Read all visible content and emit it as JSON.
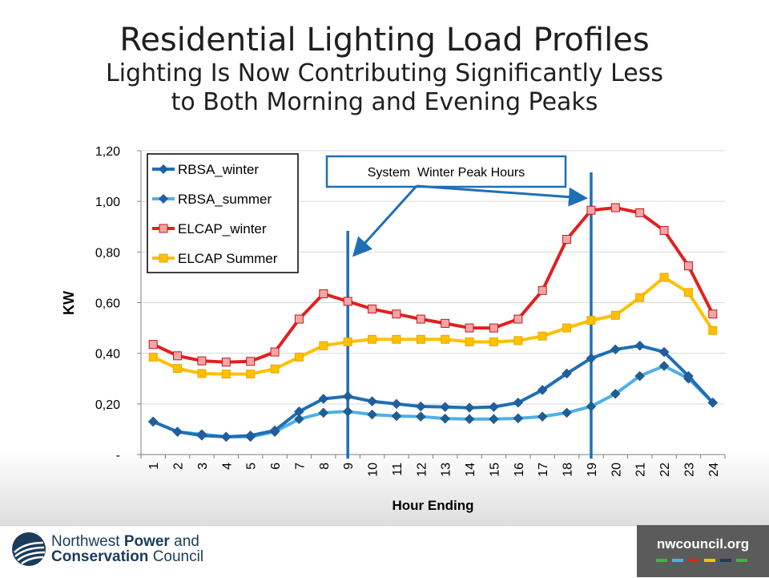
{
  "slide": {
    "title": "Residential Lighting Load Profiles",
    "subtitle": "Lighting Is Now Contributing Significantly Less to Both Morning and Evening Peaks"
  },
  "chart_data": {
    "type": "line",
    "xlabel": "Hour Ending",
    "ylabel": "KW",
    "x": [
      1,
      2,
      3,
      4,
      5,
      6,
      7,
      8,
      9,
      10,
      11,
      12,
      13,
      14,
      15,
      16,
      17,
      18,
      19,
      20,
      21,
      22,
      23,
      24
    ],
    "x_tick_labels": [
      "1",
      "2",
      "3",
      "4",
      "5",
      "6",
      "7",
      "8",
      "9",
      "10",
      "11",
      "12",
      "13",
      "14",
      "15",
      "16",
      "17",
      "18",
      "19",
      "20",
      "21",
      "22",
      "23",
      "24"
    ],
    "ylim": [
      0,
      1.2
    ],
    "y_ticks": [
      0,
      0.2,
      0.4,
      0.6,
      0.8,
      1.0,
      1.2
    ],
    "y_tick_labels": [
      "-",
      "0,20",
      "0,40",
      "0,60",
      "0,80",
      "1,00",
      "1,20"
    ],
    "legend_position": "top-left",
    "series": [
      {
        "name": "RBSA_winter",
        "color": "#1f6fb5",
        "marker": "diamond",
        "values": [
          0.13,
          0.09,
          0.075,
          0.07,
          0.075,
          0.095,
          0.17,
          0.22,
          0.23,
          0.21,
          0.2,
          0.19,
          0.188,
          0.185,
          0.188,
          0.205,
          0.255,
          0.32,
          0.38,
          0.415,
          0.43,
          0.405,
          0.31,
          0.205
        ]
      },
      {
        "name": "RBSA_summer",
        "color": "#4fb0e8",
        "marker": "diamond",
        "values": [
          0.13,
          0.09,
          0.08,
          0.07,
          0.07,
          0.09,
          0.14,
          0.165,
          0.17,
          0.158,
          0.152,
          0.15,
          0.142,
          0.14,
          0.14,
          0.143,
          0.15,
          0.165,
          0.19,
          0.24,
          0.31,
          0.35,
          0.3,
          0.205
        ]
      },
      {
        "name": "ELCAP_winter",
        "color": "#e2201f",
        "marker": "square",
        "values": [
          0.435,
          0.39,
          0.37,
          0.365,
          0.368,
          0.405,
          0.535,
          0.635,
          0.605,
          0.575,
          0.555,
          0.535,
          0.518,
          0.5,
          0.5,
          0.535,
          0.648,
          0.85,
          0.965,
          0.975,
          0.955,
          0.885,
          0.745,
          0.555
        ]
      },
      {
        "name": "ELCAP Summer",
        "color": "#ffc000",
        "marker": "square",
        "values": [
          0.385,
          0.34,
          0.32,
          0.318,
          0.318,
          0.338,
          0.385,
          0.43,
          0.445,
          0.455,
          0.455,
          0.455,
          0.455,
          0.445,
          0.445,
          0.45,
          0.468,
          0.5,
          0.53,
          0.55,
          0.62,
          0.7,
          0.64,
          0.49
        ]
      }
    ],
    "vertical_lines": [
      9,
      19
    ],
    "annotation": "System  Winter Peak Hours"
  },
  "footer": {
    "org_line1_regular": "Northwest ",
    "org_line1_bold": "Power",
    "org_line1_end": " and",
    "org_line2_bold": "Conservation",
    "org_line2_end": " Council",
    "url": "nwcouncil.org",
    "accent_colors": [
      "#3db54a",
      "#4fb0e8",
      "#e2201f",
      "#ffc000",
      "#1b3b5a",
      "#3db54a"
    ]
  }
}
